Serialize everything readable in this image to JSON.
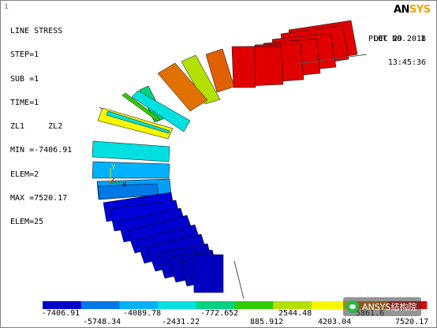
{
  "window": {
    "number": "1"
  },
  "logo": {
    "text_an": "AN",
    "text_sys": "SYS"
  },
  "header": {
    "title": "LINE STRESS",
    "info_lines": [
      "STEP=1",
      "SUB =1",
      "TIME=1",
      "ZL1     ZL2",
      "MIN =-7406.91",
      "ELEM=2",
      "MAX =7520.17",
      "ELEM=25"
    ],
    "date": "DEC 29 2018",
    "time": "13:45:36",
    "plot_no": "PLOT NO.   1"
  },
  "triad": {
    "y_label": "Y",
    "x_label": "X"
  },
  "legend": {
    "colors": [
      "#0000c8",
      "#0079e6",
      "#00b2ff",
      "#00e0e0",
      "#00d280",
      "#30cc00",
      "#b4e000",
      "#f7f700",
      "#f08000",
      "#e00000"
    ],
    "top_labels": [
      "-7406.91",
      "-4089.78",
      "-772.652",
      "2544.48",
      "5861.6"
    ],
    "bottom_labels": [
      "-5748.34",
      "-2431.22",
      "885.912",
      "4203.04",
      "7520.17"
    ]
  },
  "watermark": {
    "text": "ANSYS结构院"
  }
}
